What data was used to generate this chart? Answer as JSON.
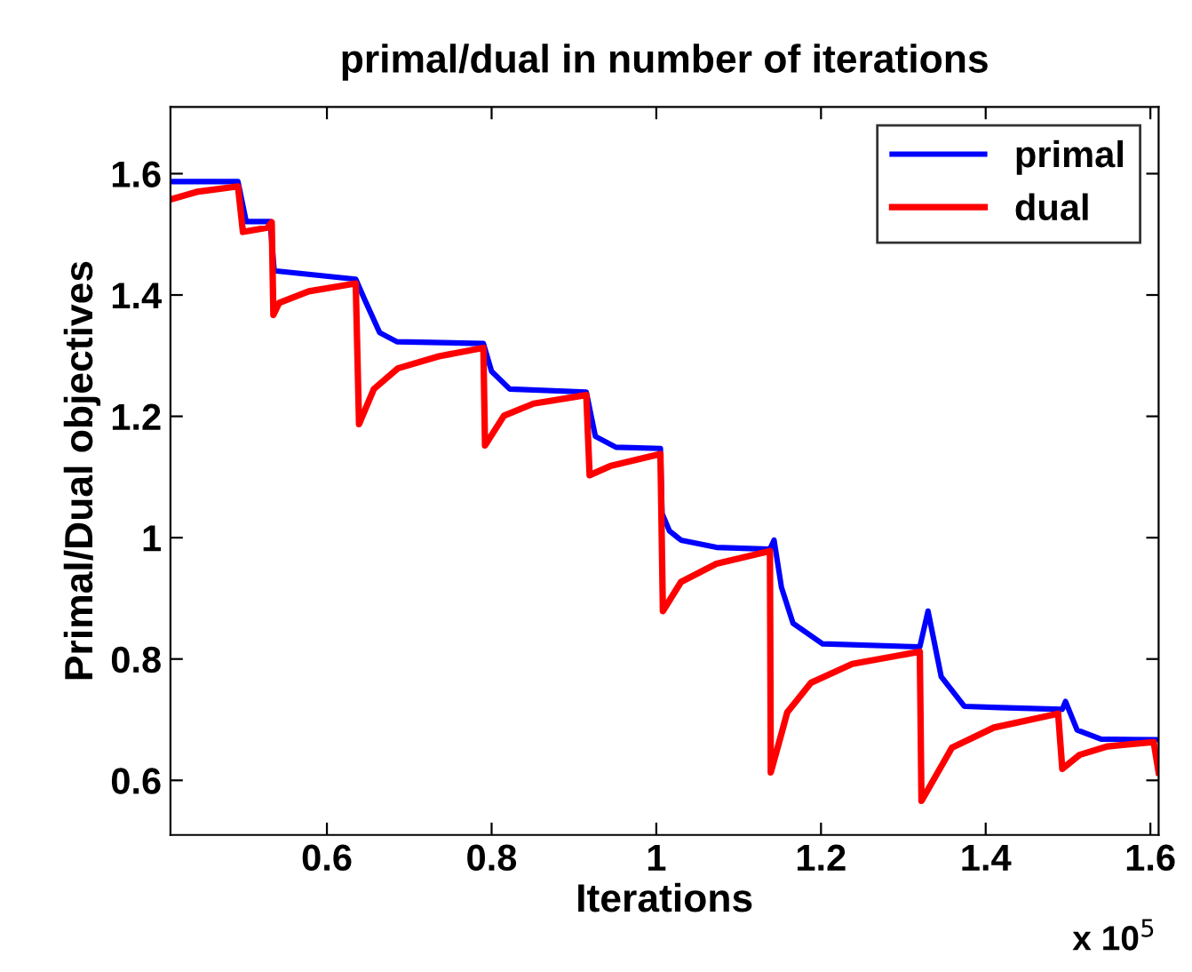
{
  "chart_data": {
    "type": "line",
    "title": "primal/dual in number of iterations",
    "xlabel": "Iterations",
    "ylabel": "Primal/Dual objectives",
    "annotations": [
      "x 10$^{5}$"
    ],
    "xlim": [
      0.41,
      1.61
    ],
    "xticks": [
      0.6,
      0.8,
      1,
      1.2,
      1.4,
      1.6
    ],
    "ylim": [
      0.51,
      1.71
    ],
    "yticks": [
      0.6,
      0.8,
      1,
      1.2,
      1.4,
      1.6
    ],
    "grid": false,
    "legend": "top right",
    "line_style": "solid",
    "series": [
      {
        "name": "primal",
        "color": "#0000ff",
        "x": [
          0.411,
          0.492,
          0.502,
          0.531,
          0.536,
          0.635,
          0.646,
          0.664,
          0.685,
          0.79,
          0.8,
          0.822,
          0.915,
          0.926,
          0.951,
          1.005,
          1.007,
          1.016,
          1.03,
          1.073,
          1.138,
          1.143,
          1.152,
          1.166,
          1.202,
          1.32,
          1.33,
          1.346,
          1.374,
          1.417,
          1.493,
          1.497,
          1.511,
          1.54,
          1.609
        ],
        "values": [
          1.587,
          1.587,
          1.521,
          1.521,
          1.44,
          1.426,
          1.392,
          1.338,
          1.323,
          1.32,
          1.274,
          1.245,
          1.24,
          1.167,
          1.149,
          1.147,
          1.04,
          1.011,
          0.996,
          0.984,
          0.981,
          0.996,
          0.918,
          0.859,
          0.825,
          0.82,
          0.879,
          0.771,
          0.722,
          0.72,
          0.717,
          0.73,
          0.683,
          0.668,
          0.667
        ]
      },
      {
        "name": "dual",
        "color": "#ff0000",
        "x": [
          0.411,
          0.442,
          0.492,
          0.498,
          0.528,
          0.533,
          0.535,
          0.542,
          0.578,
          0.635,
          0.639,
          0.657,
          0.686,
          0.736,
          0.79,
          0.792,
          0.815,
          0.851,
          0.915,
          0.919,
          0.944,
          1.005,
          1.008,
          1.03,
          1.073,
          1.138,
          1.139,
          1.152,
          1.159,
          1.188,
          1.238,
          1.32,
          1.322,
          1.359,
          1.41,
          1.488,
          1.493,
          1.514,
          1.548,
          1.604,
          1.61
        ],
        "values": [
          1.558,
          1.57,
          1.579,
          1.504,
          1.511,
          1.52,
          1.367,
          1.387,
          1.406,
          1.419,
          1.187,
          1.245,
          1.279,
          1.299,
          1.313,
          1.152,
          1.201,
          1.221,
          1.235,
          1.103,
          1.118,
          1.138,
          0.879,
          0.927,
          0.957,
          0.978,
          0.613,
          0.677,
          0.712,
          0.761,
          0.792,
          0.812,
          0.566,
          0.654,
          0.687,
          0.71,
          0.619,
          0.642,
          0.656,
          0.663,
          0.613
        ]
      }
    ]
  }
}
